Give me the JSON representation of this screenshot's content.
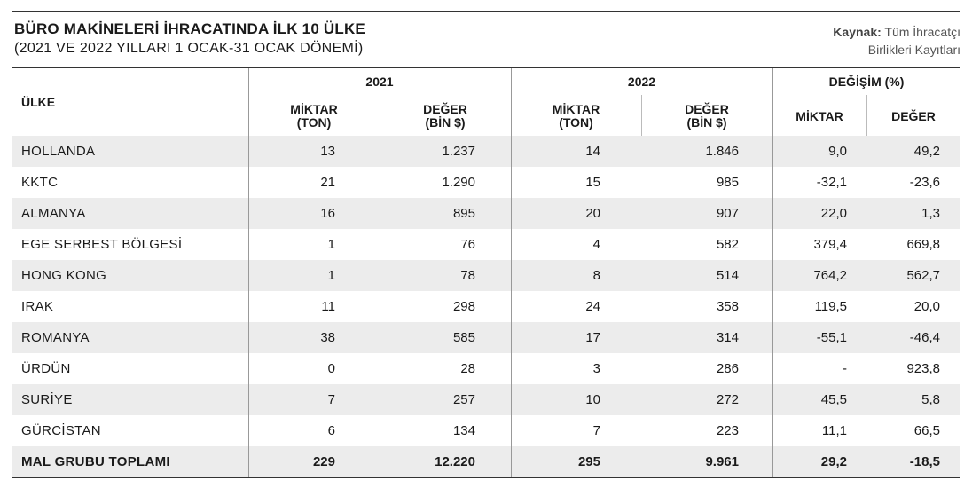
{
  "title": "BÜRO MAKİNELERİ İHRACATINDA İLK 10 ÜLKE",
  "subtitle": "(2021 VE 2022 YILLARI 1 OCAK-31 OCAK DÖNEMİ)",
  "source": {
    "label": "Kaynak:",
    "line1": "Tüm İhracatçı",
    "line2": "Birlikleri Kayıtları"
  },
  "header": {
    "country": "ÜLKE",
    "year1": "2021",
    "year2": "2022",
    "change": "DEĞİŞİM (%)",
    "qty_line1": "MİKTAR",
    "qty_line2": "(TON)",
    "val_line1": "DEĞER",
    "val_line2": "(BİN $)",
    "change_qty": "MİKTAR",
    "change_val": "DEĞER"
  },
  "rows": [
    {
      "country": "HOLLANDA",
      "q2021": "13",
      "v2021": "1.237",
      "q2022": "14",
      "v2022": "1.846",
      "dq": "9,0",
      "dv": "49,2"
    },
    {
      "country": "KKTC",
      "q2021": "21",
      "v2021": "1.290",
      "q2022": "15",
      "v2022": "985",
      "dq": "-32,1",
      "dv": "-23,6"
    },
    {
      "country": "ALMANYA",
      "q2021": "16",
      "v2021": "895",
      "q2022": "20",
      "v2022": "907",
      "dq": "22,0",
      "dv": "1,3"
    },
    {
      "country": "EGE SERBEST BÖLGESİ",
      "q2021": "1",
      "v2021": "76",
      "q2022": "4",
      "v2022": "582",
      "dq": "379,4",
      "dv": "669,8"
    },
    {
      "country": "HONG KONG",
      "q2021": "1",
      "v2021": "78",
      "q2022": "8",
      "v2022": "514",
      "dq": "764,2",
      "dv": "562,7"
    },
    {
      "country": "IRAK",
      "q2021": "11",
      "v2021": "298",
      "q2022": "24",
      "v2022": "358",
      "dq": "119,5",
      "dv": "20,0"
    },
    {
      "country": "ROMANYA",
      "q2021": "38",
      "v2021": "585",
      "q2022": "17",
      "v2022": "314",
      "dq": "-55,1",
      "dv": "-46,4"
    },
    {
      "country": "ÜRDÜN",
      "q2021": "0",
      "v2021": "28",
      "q2022": "3",
      "v2022": "286",
      "dq": "-",
      "dv": "923,8"
    },
    {
      "country": "SURİYE",
      "q2021": "7",
      "v2021": "257",
      "q2022": "10",
      "v2022": "272",
      "dq": "45,5",
      "dv": "5,8"
    },
    {
      "country": "GÜRCİSTAN",
      "q2021": "6",
      "v2021": "134",
      "q2022": "7",
      "v2022": "223",
      "dq": "11,1",
      "dv": "66,5"
    }
  ],
  "total": {
    "country": "MAL GRUBU TOPLAMI",
    "q2021": "229",
    "v2021": "12.220",
    "q2022": "295",
    "v2022": "9.961",
    "dq": "29,2",
    "dv": "-18,5"
  }
}
